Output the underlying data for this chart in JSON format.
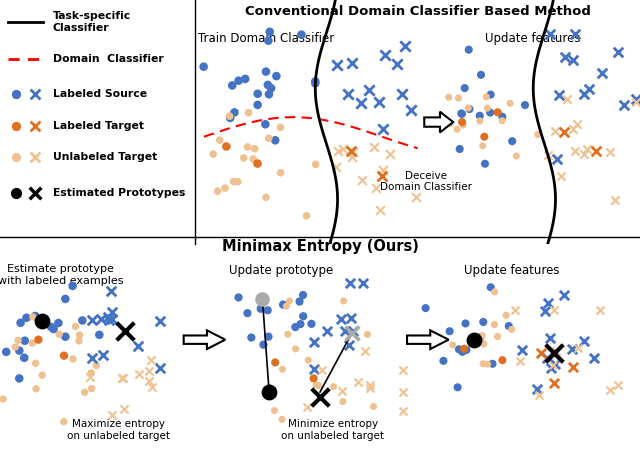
{
  "blue_dot": "#4472C4",
  "orange_dot": "#E07020",
  "peach_dot": "#F0C090",
  "black_dot": "#000000",
  "gray_dot": "#AAAAAA",
  "title_top": "Conventional Domain Classifier Based Method",
  "title_bottom": "Minimax Entropy (Ours)",
  "subtitle_top1": "Train Domain Classifier",
  "subtitle_top2": "Update features",
  "subtitle_bot1": "Estimate prototype\nwith labeled examples",
  "subtitle_bot2": "Update prototype",
  "subtitle_bot3": "Update features",
  "text_deceive": "Deceive\nDomain Classifier",
  "text_maximize": "Maximize entropy\non unlabeled target",
  "text_minimize": "Minimize entropy\non unlabeled target",
  "background": "#FFFFFF"
}
